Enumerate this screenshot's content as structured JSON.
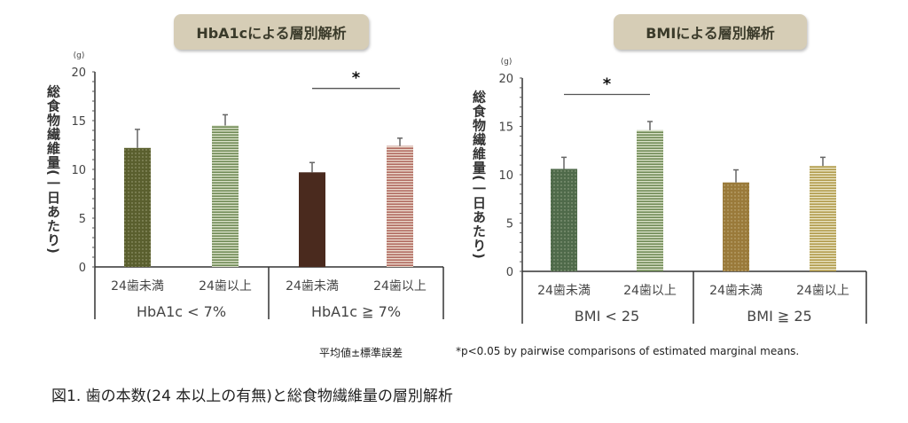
{
  "chart_data": [
    {
      "type": "bar",
      "title": "HbA1cによる層別解析",
      "ylabel": "総食物繊維量(一日あたり)",
      "yunit": "(g)",
      "ylim": [
        0,
        20
      ],
      "yticks": [
        0,
        5,
        10,
        15,
        20
      ],
      "categories": [
        "24歯未満",
        "24歯以上",
        "24歯未満",
        "24歯以上"
      ],
      "groups": [
        "HbA1c < 7%",
        "HbA1c ≧ 7%"
      ],
      "values": [
        12.2,
        14.5,
        9.7,
        12.4
      ],
      "errors": [
        1.9,
        1.1,
        1.0,
        0.8
      ],
      "colors": [
        "#5a5f2e",
        "#6f8a55",
        "#4a2a1e",
        "#b06a60"
      ],
      "patterns": [
        "dots",
        "stripes",
        "solid",
        "stripes"
      ],
      "significance": [
        {
          "between": [
            2,
            3
          ],
          "label": "*"
        }
      ]
    },
    {
      "type": "bar",
      "title": "BMIによる層別解析",
      "ylabel": "総食物繊維量(一日あたり)",
      "yunit": "(g)",
      "ylim": [
        0,
        20
      ],
      "yticks": [
        0,
        5,
        10,
        15,
        20
      ],
      "categories": [
        "24歯未満",
        "24歯以上",
        "24歯未満",
        "24歯以上"
      ],
      "groups": [
        "BMI < 25",
        "BMI ≧ 25"
      ],
      "values": [
        10.6,
        14.6,
        9.2,
        10.9
      ],
      "errors": [
        1.2,
        0.9,
        1.3,
        0.9
      ],
      "colors": [
        "#4f6a4a",
        "#6f8a55",
        "#9a7a3a",
        "#b09a4a"
      ],
      "patterns": [
        "dots",
        "stripes",
        "dots",
        "stripes"
      ],
      "significance": [
        {
          "between": [
            0,
            1
          ],
          "label": "*"
        }
      ]
    }
  ],
  "notes": {
    "error_note": "平均値±標準誤差",
    "significance_note": "*p<0.05 by pairwise comparisons of estimated marginal means."
  },
  "caption": "図1. 歯の本数(24 本以上の有無)と総食物繊維量の層別解析"
}
